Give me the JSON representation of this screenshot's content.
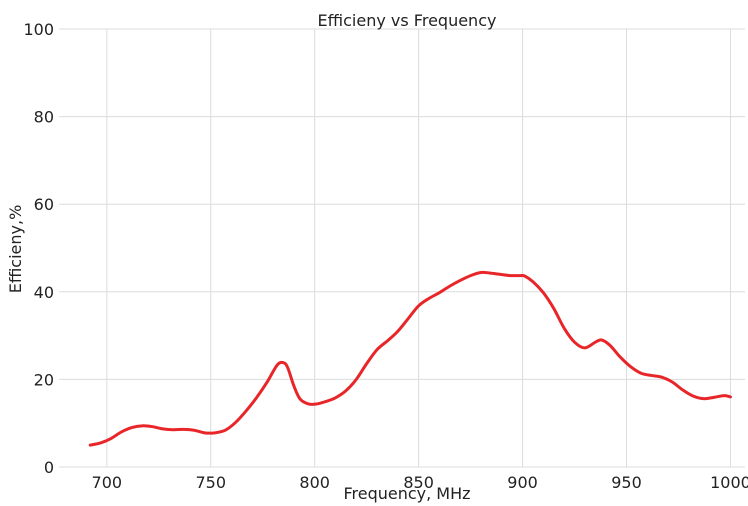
{
  "chart_data": {
    "type": "line",
    "title": "Efficieny vs Frequency",
    "xlabel": "Frequency, MHz",
    "ylabel": "Efficieny,%",
    "xlim": [
      677,
      1007
    ],
    "ylim": [
      0,
      100
    ],
    "xticks": [
      700,
      750,
      800,
      850,
      900,
      950,
      1000
    ],
    "yticks": [
      0,
      20,
      40,
      60,
      80,
      100
    ],
    "grid": true,
    "line_color": "#e8262a",
    "series": [
      {
        "x": [
          692,
          697,
          702,
          707,
          712,
          717,
          722,
          727,
          732,
          737,
          742,
          747,
          752,
          757,
          762,
          767,
          772,
          777,
          782,
          785,
          787,
          790,
          793,
          797,
          801,
          805,
          810,
          815,
          820,
          825,
          830,
          835,
          840,
          845,
          850,
          855,
          860,
          865,
          870,
          875,
          880,
          884,
          889,
          894,
          899,
          901,
          905,
          910,
          915,
          920,
          925,
          930,
          935,
          938,
          942,
          947,
          952,
          957,
          962,
          967,
          972,
          977,
          982,
          987,
          992,
          997,
          1000
        ],
        "values": [
          5.0,
          5.5,
          6.5,
          8.0,
          9.0,
          9.4,
          9.2,
          8.7,
          8.5,
          8.6,
          8.4,
          7.8,
          7.8,
          8.4,
          10.2,
          12.8,
          15.8,
          19.3,
          23.3,
          23.8,
          22.7,
          18.5,
          15.5,
          14.4,
          14.4,
          14.9,
          15.8,
          17.4,
          20.0,
          23.6,
          26.8,
          28.8,
          31.0,
          33.9,
          36.8,
          38.5,
          39.8,
          41.3,
          42.6,
          43.7,
          44.4,
          44.3,
          44.0,
          43.7,
          43.7,
          43.6,
          42.3,
          39.8,
          36.2,
          31.7,
          28.5,
          27.2,
          28.5,
          29.0,
          27.8,
          25.1,
          22.9,
          21.4,
          20.9,
          20.5,
          19.4,
          17.6,
          16.2,
          15.6,
          15.9,
          16.3,
          16.0
        ]
      }
    ]
  }
}
